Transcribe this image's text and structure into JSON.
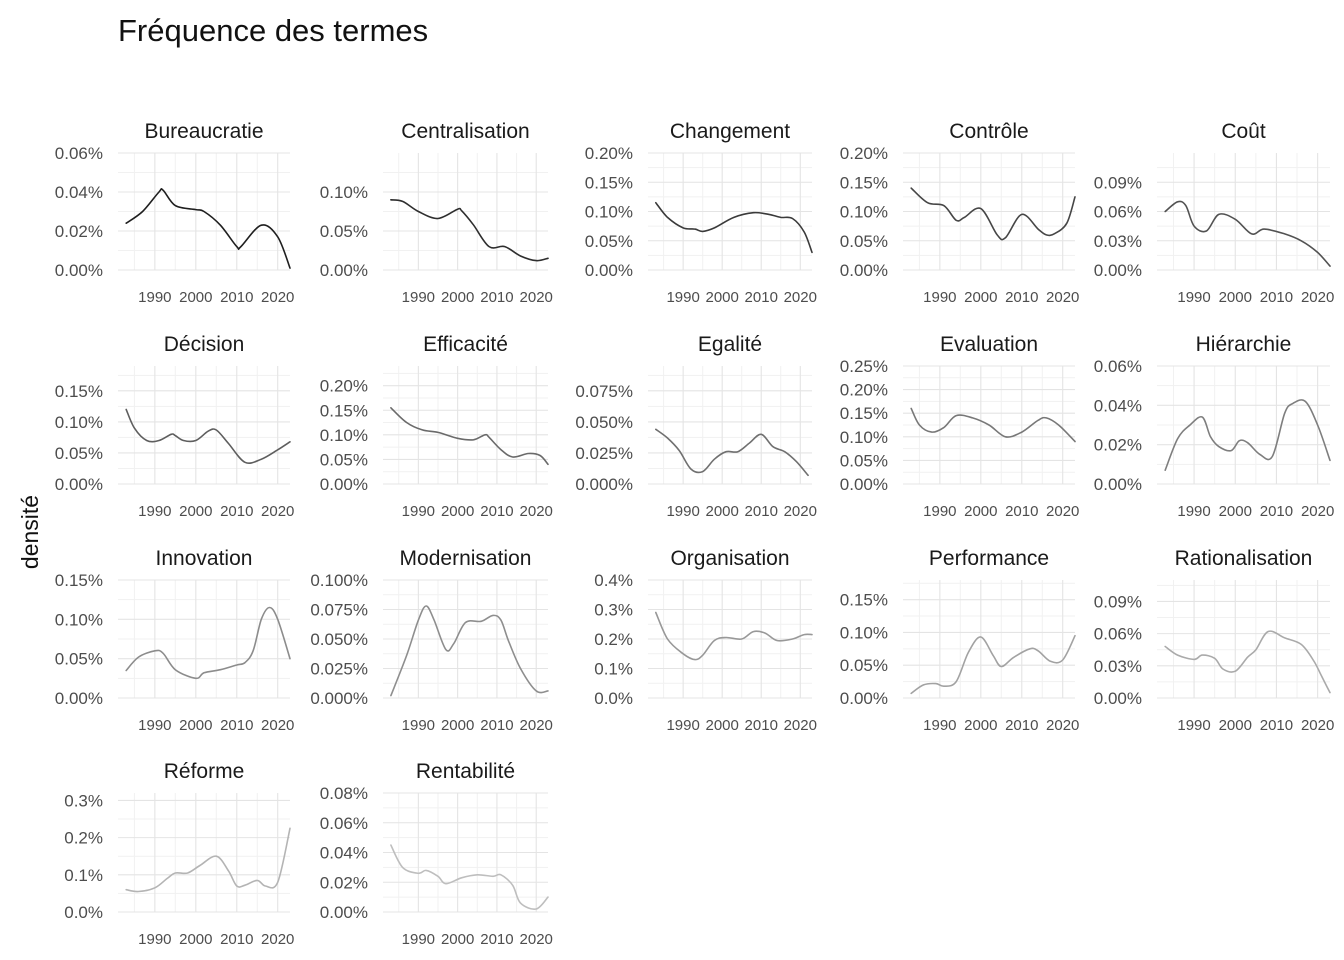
{
  "title": "Fréquence des termes",
  "ylabel": "densité",
  "chart_data": {
    "type": "line",
    "title": "Fréquence des termes",
    "ylabel": "densité",
    "xlabel": "",
    "x_ticks": [
      1990,
      2000,
      2010,
      2020
    ],
    "xlim": [
      1981,
      2023
    ],
    "grid": true,
    "facets": [
      {
        "name": "Bureaucratie",
        "color": "#1f1f1f",
        "ylim": [
          0,
          0.06
        ],
        "y_ticks": [
          0.0,
          0.02,
          0.04,
          0.06
        ],
        "y_tick_labels": [
          "0.00%",
          "0.02%",
          "0.04%",
          "0.06%"
        ],
        "x": [
          1983,
          1987,
          1991,
          1992,
          1995,
          2000,
          2002,
          2006,
          2010,
          2011,
          2016,
          2020,
          2023
        ],
        "values": [
          0.024,
          0.03,
          0.04,
          0.041,
          0.033,
          0.031,
          0.03,
          0.023,
          0.012,
          0.012,
          0.023,
          0.017,
          0.001
        ]
      },
      {
        "name": "Centralisation",
        "color": "#2e2e2e",
        "ylim": [
          0,
          0.15
        ],
        "y_ticks": [
          0.0,
          0.05,
          0.1
        ],
        "y_tick_labels": [
          "0.00%",
          "0.05%",
          "0.10%"
        ],
        "x": [
          1983,
          1986,
          1990,
          1995,
          2000,
          2001,
          2004,
          2008,
          2012,
          2016,
          2020,
          2023
        ],
        "values": [
          0.09,
          0.088,
          0.075,
          0.066,
          0.078,
          0.076,
          0.058,
          0.03,
          0.03,
          0.018,
          0.012,
          0.015
        ]
      },
      {
        "name": "Changement",
        "color": "#3a3a3a",
        "ylim": [
          0,
          0.2
        ],
        "y_ticks": [
          0.0,
          0.05,
          0.1,
          0.15,
          0.2
        ],
        "y_tick_labels": [
          "0.00%",
          "0.05%",
          "0.10%",
          "0.15%",
          "0.20%"
        ],
        "x": [
          1983,
          1986,
          1990,
          1993,
          1995,
          1998,
          2003,
          2008,
          2012,
          2015,
          2018,
          2021,
          2023
        ],
        "values": [
          0.115,
          0.09,
          0.072,
          0.07,
          0.066,
          0.072,
          0.09,
          0.098,
          0.095,
          0.09,
          0.088,
          0.065,
          0.03
        ]
      },
      {
        "name": "Contrôle",
        "color": "#464646",
        "ylim": [
          0,
          0.2
        ],
        "y_ticks": [
          0.0,
          0.05,
          0.1,
          0.15,
          0.2
        ],
        "y_tick_labels": [
          "0.00%",
          "0.05%",
          "0.10%",
          "0.15%",
          "0.20%"
        ],
        "x": [
          1983,
          1987,
          1991,
          1994,
          1996,
          2000,
          2004,
          2006,
          2010,
          2014,
          2016,
          2018,
          2021,
          2023
        ],
        "values": [
          0.14,
          0.115,
          0.11,
          0.085,
          0.09,
          0.105,
          0.06,
          0.055,
          0.095,
          0.07,
          0.06,
          0.062,
          0.08,
          0.125
        ]
      },
      {
        "name": "Coût",
        "color": "#525252",
        "ylim": [
          0,
          0.12
        ],
        "y_ticks": [
          0.0,
          0.03,
          0.06,
          0.09
        ],
        "y_tick_labels": [
          "0.00%",
          "0.03%",
          "0.06%",
          "0.09%"
        ],
        "x": [
          1983,
          1986,
          1988,
          1990,
          1993,
          1996,
          2000,
          2004,
          2007,
          2012,
          2016,
          2020,
          2023
        ],
        "values": [
          0.06,
          0.07,
          0.066,
          0.045,
          0.04,
          0.057,
          0.052,
          0.037,
          0.042,
          0.037,
          0.03,
          0.018,
          0.004
        ]
      },
      {
        "name": "Décision",
        "color": "#5e5e5e",
        "ylim": [
          0,
          0.19
        ],
        "y_ticks": [
          0.0,
          0.05,
          0.1,
          0.15
        ],
        "y_tick_labels": [
          "0.00%",
          "0.05%",
          "0.10%",
          "0.15%"
        ],
        "x": [
          1983,
          1985,
          1988,
          1991,
          1994,
          1995,
          1997,
          2000,
          2003,
          2005,
          2008,
          2012,
          2016,
          2020,
          2023
        ],
        "values": [
          0.12,
          0.09,
          0.07,
          0.07,
          0.08,
          0.078,
          0.07,
          0.07,
          0.085,
          0.087,
          0.065,
          0.035,
          0.04,
          0.055,
          0.068
        ]
      },
      {
        "name": "Efficacité",
        "color": "#6a6a6a",
        "ylim": [
          0,
          0.24
        ],
        "y_ticks": [
          0.0,
          0.05,
          0.1,
          0.15,
          0.2
        ],
        "y_tick_labels": [
          "0.00%",
          "0.05%",
          "0.10%",
          "0.15%",
          "0.20%"
        ],
        "x": [
          1983,
          1987,
          1991,
          1995,
          2000,
          2004,
          2007,
          2008,
          2011,
          2014,
          2018,
          2021,
          2023
        ],
        "values": [
          0.155,
          0.125,
          0.11,
          0.105,
          0.093,
          0.09,
          0.1,
          0.095,
          0.07,
          0.055,
          0.062,
          0.058,
          0.04
        ]
      },
      {
        "name": "Egalité",
        "color": "#707070",
        "ylim": [
          0,
          0.095
        ],
        "y_ticks": [
          0.0,
          0.025,
          0.05,
          0.075
        ],
        "y_tick_labels": [
          "0.000%",
          "0.025%",
          "0.050%",
          "0.075%"
        ],
        "x": [
          1983,
          1986,
          1989,
          1992,
          1995,
          1998,
          2001,
          2004,
          2007,
          2010,
          2013,
          2016,
          2019,
          2022
        ],
        "values": [
          0.044,
          0.037,
          0.027,
          0.012,
          0.01,
          0.02,
          0.026,
          0.026,
          0.033,
          0.04,
          0.03,
          0.026,
          0.018,
          0.007
        ]
      },
      {
        "name": "Evaluation",
        "color": "#787878",
        "ylim": [
          0,
          0.25
        ],
        "y_ticks": [
          0.0,
          0.05,
          0.1,
          0.15,
          0.2,
          0.25
        ],
        "y_tick_labels": [
          "0.00%",
          "0.05%",
          "0.10%",
          "0.15%",
          "0.20%",
          "0.25%"
        ],
        "x": [
          1983,
          1985,
          1988,
          1991,
          1994,
          1998,
          2002,
          2006,
          2010,
          2014,
          2016,
          2019,
          2023
        ],
        "values": [
          0.16,
          0.125,
          0.11,
          0.12,
          0.145,
          0.14,
          0.125,
          0.1,
          0.11,
          0.135,
          0.14,
          0.125,
          0.09
        ]
      },
      {
        "name": "Hiérarchie",
        "color": "#7e7e7e",
        "ylim": [
          0,
          0.06
        ],
        "y_ticks": [
          0.0,
          0.02,
          0.04,
          0.06
        ],
        "y_tick_labels": [
          "0.00%",
          "0.02%",
          "0.04%",
          "0.06%"
        ],
        "x": [
          1983,
          1986,
          1989,
          1992,
          1994,
          1996,
          1999,
          2001,
          2003,
          2006,
          2009,
          2012,
          2014,
          2017,
          2020,
          2023
        ],
        "values": [
          0.007,
          0.023,
          0.03,
          0.034,
          0.024,
          0.019,
          0.017,
          0.022,
          0.021,
          0.015,
          0.014,
          0.036,
          0.041,
          0.042,
          0.03,
          0.012
        ]
      },
      {
        "name": "Innovation",
        "color": "#8c8c8c",
        "ylim": [
          0,
          0.15
        ],
        "y_ticks": [
          0.0,
          0.05,
          0.1,
          0.15
        ],
        "y_tick_labels": [
          "0.00%",
          "0.05%",
          "0.10%",
          "0.15%"
        ],
        "x": [
          1983,
          1986,
          1990,
          1992,
          1995,
          2000,
          2002,
          2006,
          2010,
          2012,
          2014,
          2016,
          2018,
          2020,
          2023
        ],
        "values": [
          0.035,
          0.052,
          0.06,
          0.057,
          0.036,
          0.025,
          0.032,
          0.036,
          0.042,
          0.045,
          0.06,
          0.1,
          0.115,
          0.1,
          0.05
        ]
      },
      {
        "name": "Modernisation",
        "color": "#8e8e8e",
        "ylim": [
          0,
          0.1
        ],
        "y_ticks": [
          0.0,
          0.025,
          0.05,
          0.075,
          0.1
        ],
        "y_tick_labels": [
          "0.000%",
          "0.025%",
          "0.050%",
          "0.075%",
          "0.100%"
        ],
        "x": [
          1983,
          1987,
          1990,
          1992,
          1994,
          1997,
          1999,
          2002,
          2006,
          2009,
          2011,
          2013,
          2016,
          2020,
          2023
        ],
        "values": [
          0.002,
          0.036,
          0.066,
          0.078,
          0.066,
          0.041,
          0.046,
          0.064,
          0.065,
          0.07,
          0.066,
          0.048,
          0.025,
          0.006,
          0.006
        ]
      },
      {
        "name": "Organisation",
        "color": "#989898",
        "ylim": [
          0,
          0.4
        ],
        "y_ticks": [
          0.0,
          0.1,
          0.2,
          0.3,
          0.4
        ],
        "y_tick_labels": [
          "0.0%",
          "0.1%",
          "0.2%",
          "0.3%",
          "0.4%"
        ],
        "x": [
          1983,
          1986,
          1990,
          1993,
          1995,
          1998,
          2001,
          2005,
          2008,
          2011,
          2014,
          2018,
          2021,
          2023
        ],
        "values": [
          0.29,
          0.2,
          0.15,
          0.13,
          0.145,
          0.195,
          0.205,
          0.2,
          0.225,
          0.22,
          0.195,
          0.2,
          0.215,
          0.215
        ]
      },
      {
        "name": "Performance",
        "color": "#a2a2a2",
        "ylim": [
          0,
          0.18
        ],
        "y_ticks": [
          0.0,
          0.05,
          0.1,
          0.15
        ],
        "y_tick_labels": [
          "0.00%",
          "0.05%",
          "0.10%",
          "0.15%"
        ],
        "x": [
          1983,
          1986,
          1989,
          1991,
          1994,
          1997,
          2000,
          2003,
          2005,
          2008,
          2012,
          2014,
          2017,
          2020,
          2023
        ],
        "values": [
          0.007,
          0.02,
          0.022,
          0.018,
          0.025,
          0.07,
          0.093,
          0.065,
          0.048,
          0.062,
          0.075,
          0.072,
          0.056,
          0.058,
          0.095
        ]
      },
      {
        "name": "Rationalisation",
        "color": "#aaaaaa",
        "ylim": [
          0,
          0.11
        ],
        "y_ticks": [
          0.0,
          0.03,
          0.06,
          0.09
        ],
        "y_tick_labels": [
          "0.00%",
          "0.03%",
          "0.06%",
          "0.09%"
        ],
        "x": [
          1983,
          1986,
          1990,
          1992,
          1995,
          1997,
          2000,
          2003,
          2005,
          2008,
          2012,
          2016,
          2019,
          2021,
          2023
        ],
        "values": [
          0.048,
          0.04,
          0.036,
          0.04,
          0.037,
          0.027,
          0.025,
          0.038,
          0.045,
          0.062,
          0.056,
          0.05,
          0.035,
          0.02,
          0.005
        ]
      },
      {
        "name": "Réforme",
        "color": "#b4b4b4",
        "ylim": [
          0,
          0.32
        ],
        "y_ticks": [
          0.0,
          0.1,
          0.2,
          0.3
        ],
        "y_tick_labels": [
          "0.0%",
          "0.1%",
          "0.2%",
          "0.3%"
        ],
        "x": [
          1983,
          1986,
          1990,
          1993,
          1995,
          1998,
          2001,
          2005,
          2008,
          2010,
          2012,
          2015,
          2017,
          2020,
          2023
        ],
        "values": [
          0.06,
          0.055,
          0.065,
          0.09,
          0.105,
          0.105,
          0.125,
          0.15,
          0.11,
          0.07,
          0.072,
          0.085,
          0.07,
          0.08,
          0.225
        ]
      },
      {
        "name": "Rentabilité",
        "color": "#bebebe",
        "ylim": [
          0,
          0.08
        ],
        "y_ticks": [
          0.0,
          0.02,
          0.04,
          0.06,
          0.08
        ],
        "y_tick_labels": [
          "0.00%",
          "0.02%",
          "0.04%",
          "0.06%",
          "0.08%"
        ],
        "x": [
          1983,
          1986,
          1990,
          1992,
          1995,
          1997,
          2001,
          2005,
          2009,
          2011,
          2014,
          2016,
          2020,
          2023
        ],
        "values": [
          0.045,
          0.03,
          0.026,
          0.028,
          0.024,
          0.019,
          0.023,
          0.025,
          0.024,
          0.025,
          0.018,
          0.006,
          0.002,
          0.01
        ]
      }
    ]
  }
}
